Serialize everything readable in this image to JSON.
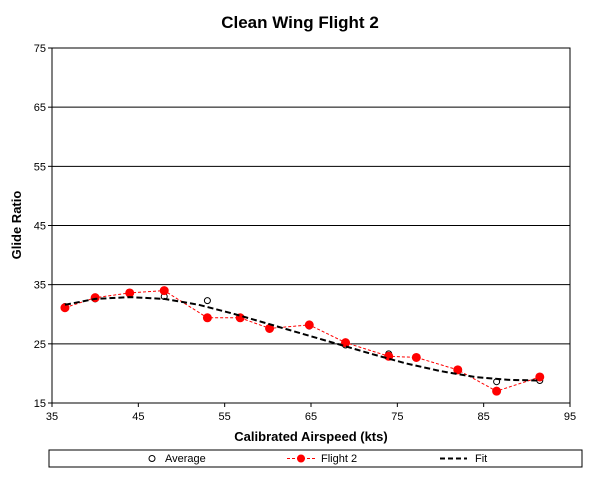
{
  "chart_data": {
    "type": "line",
    "title": "Clean Wing Flight 2",
    "xlabel": "Calibrated Airspeed  (kts)",
    "ylabel": "Glide Ratio",
    "xlim": [
      35,
      95
    ],
    "ylim": [
      15,
      75
    ],
    "xticks": [
      "35",
      "45",
      "55",
      "65",
      "75",
      "85",
      "95"
    ],
    "yticks": [
      "15",
      "25",
      "35",
      "45",
      "55",
      "65",
      "75"
    ],
    "grid": "horizontal",
    "legend_position": "bottom",
    "series": [
      {
        "name": "Average",
        "style": "open-circle markers",
        "color": "#000000",
        "x": [
          36.5,
          40.0,
          44.0,
          48.0,
          53.0,
          56.8,
          60.2,
          64.8,
          69.0,
          74.0,
          77.2,
          82.0,
          86.5,
          91.5
        ],
        "y": [
          31.3,
          32.6,
          33.4,
          33.0,
          32.3,
          29.5,
          27.7,
          28.0,
          24.8,
          23.3,
          22.6,
          20.7,
          18.6,
          18.8
        ]
      },
      {
        "name": "Flight 2",
        "style": "red dashed line with filled circle markers",
        "color": "#ff0000",
        "x": [
          36.5,
          40.0,
          44.0,
          48.0,
          53.0,
          56.8,
          60.2,
          64.8,
          69.0,
          74.0,
          77.2,
          82.0,
          86.5,
          91.5
        ],
        "y": [
          31.1,
          32.8,
          33.6,
          34.0,
          29.4,
          29.4,
          27.6,
          28.2,
          25.2,
          22.9,
          22.7,
          20.6,
          17.0,
          19.4
        ]
      },
      {
        "name": "Fit",
        "style": "black dashed curve",
        "color": "#000000",
        "x": [
          36.5,
          40,
          44,
          48,
          52,
          56,
          60,
          64,
          68,
          72,
          76,
          80,
          84,
          88,
          91.5
        ],
        "y": [
          31.6,
          32.6,
          32.9,
          32.6,
          31.6,
          30.1,
          28.4,
          26.7,
          25.0,
          23.3,
          21.7,
          20.4,
          19.4,
          18.9,
          18.8
        ]
      }
    ]
  }
}
